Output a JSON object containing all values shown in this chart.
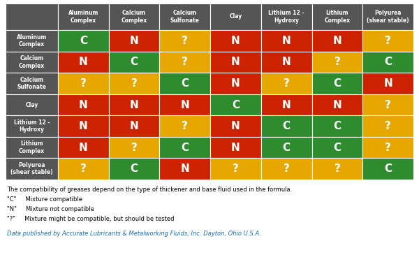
{
  "col_headers": [
    "Aluminum\nComplex",
    "Calcium\nComplex",
    "Calcium\nSulfonate",
    "Clay",
    "Lithium 12 -\nHydroxy",
    "Lithium\nComplex",
    "Polyurea\n(shear stable)"
  ],
  "row_headers": [
    "Aluminum\nComplex",
    "Calcium\nComplex",
    "Calcium\nSulfonate",
    "Clay",
    "Lithium 12 -\nHydroxy",
    "Lithium\nComplex",
    "Polyurea\n(shear stable)"
  ],
  "cells": [
    [
      "C",
      "N",
      "?",
      "N",
      "N",
      "N",
      "?"
    ],
    [
      "N",
      "C",
      "?",
      "N",
      "N",
      "?",
      "C"
    ],
    [
      "?",
      "?",
      "C",
      "N",
      "?",
      "C",
      "N"
    ],
    [
      "N",
      "N",
      "N",
      "C",
      "N",
      "N",
      "?"
    ],
    [
      "N",
      "N",
      "?",
      "N",
      "C",
      "C",
      "?"
    ],
    [
      "N",
      "?",
      "C",
      "N",
      "C",
      "C",
      "?"
    ],
    [
      "?",
      "C",
      "N",
      "?",
      "?",
      "?",
      "C"
    ]
  ],
  "color_C": "#2e8b2e",
  "color_N": "#cc2200",
  "color_Q": "#e6a800",
  "header_bg": "#555555",
  "header_text": "#ffffff",
  "row_header_bg": "#555555",
  "row_header_text": "#ffffff",
  "cell_text": "#ffffff",
  "footer_note1": "The compatibility of greases depend on the type of thickener and base fluid used in the formula.",
  "footer_note2": "\"C\"     Mixture compatible",
  "footer_note3": "\"N\"     Mixture not compatible",
  "footer_note4": "\"?\"     Mixture might be compatible, but should be tested",
  "footer_source": "Data published by Accurate Lubricants & Metalworking Fluids, Inc. Dayton, Ohio U.S.A.",
  "footer_source_color": "#1a6eb5",
  "bg_color": "#ffffff",
  "fig_width": 6.0,
  "fig_height": 3.65,
  "dpi": 100
}
